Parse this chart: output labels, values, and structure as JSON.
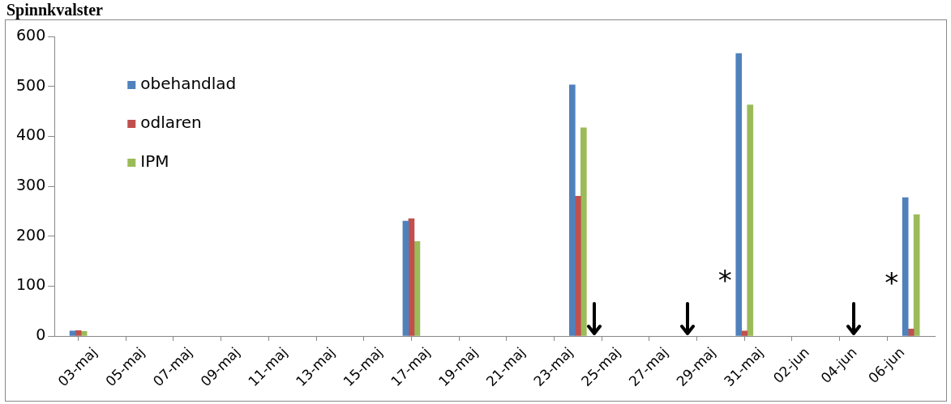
{
  "chart_data": {
    "type": "bar",
    "title": "Spinnkvalster",
    "x": [
      "--05-03",
      "--05-17",
      "--05-24",
      "--05-31",
      "--06-07"
    ],
    "series": [
      {
        "name": "obehandlad",
        "color": "#4f81bd",
        "values": [
          10,
          230,
          503,
          566,
          277
        ]
      },
      {
        "name": "odlaren",
        "color": "#c0504d",
        "values": [
          11,
          235,
          280,
          10,
          14
        ]
      },
      {
        "name": "IPM",
        "color": "#9bbb59",
        "values": [
          9,
          189,
          417,
          463,
          243
        ]
      }
    ],
    "xlim": [
      "--05-02",
      "--06-08"
    ],
    "xticks": [
      {
        "value": "--05-03",
        "label": "03-maj"
      },
      {
        "value": "--05-05",
        "label": "05-maj"
      },
      {
        "value": "--05-07",
        "label": "07-maj"
      },
      {
        "value": "--05-09",
        "label": "09-maj"
      },
      {
        "value": "--05-11",
        "label": "11-maj"
      },
      {
        "value": "--05-13",
        "label": "13-maj"
      },
      {
        "value": "--05-15",
        "label": "15-maj"
      },
      {
        "value": "--05-17",
        "label": "17-maj"
      },
      {
        "value": "--05-19",
        "label": "19-maj"
      },
      {
        "value": "--05-21",
        "label": "21-maj"
      },
      {
        "value": "--05-23",
        "label": "23-maj"
      },
      {
        "value": "--05-25",
        "label": "25-maj"
      },
      {
        "value": "--05-27",
        "label": "27-maj"
      },
      {
        "value": "--05-29",
        "label": "29-maj"
      },
      {
        "value": "--05-31",
        "label": "31-maj"
      },
      {
        "value": "--06-02",
        "label": "02-jun"
      },
      {
        "value": "--06-04",
        "label": "04-jun"
      },
      {
        "value": "--06-06",
        "label": "06-jun"
      }
    ],
    "ylim": [
      0,
      600
    ],
    "yticks": [
      0,
      100,
      200,
      300,
      400,
      500,
      600
    ],
    "grid": false,
    "legend": "top left",
    "annotations": [
      {
        "text": "*",
        "x": "--05-31",
        "y": 120
      },
      {
        "text": "*",
        "x": "--06-07",
        "y": 115
      }
    ]
  }
}
